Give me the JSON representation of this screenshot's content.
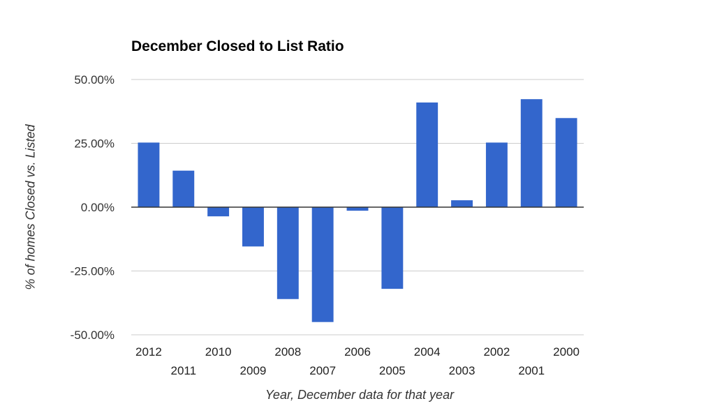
{
  "chart_data": {
    "type": "bar",
    "title": "December Closed to List Ratio",
    "xlabel": "Year, December data for that year",
    "ylabel": "% of homes Closed vs. Listed",
    "categories": [
      "2012",
      "2011",
      "2010",
      "2009",
      "2008",
      "2007",
      "2006",
      "2005",
      "2004",
      "2003",
      "2002",
      "2001",
      "2000"
    ],
    "values": [
      25.3,
      14.3,
      -3.6,
      -15.4,
      -36.0,
      -45.0,
      -1.4,
      -32.0,
      41.0,
      2.7,
      25.3,
      42.3,
      34.9
    ],
    "ylim": [
      -50,
      50
    ],
    "yticks": [
      "50.00%",
      "25.00%",
      "0.00%",
      "-25.00%",
      "-50.00%"
    ],
    "ytick_values": [
      50,
      25,
      0,
      -25,
      -50
    ],
    "grid": true,
    "legend": "none",
    "bar_color": "#3366cc"
  }
}
